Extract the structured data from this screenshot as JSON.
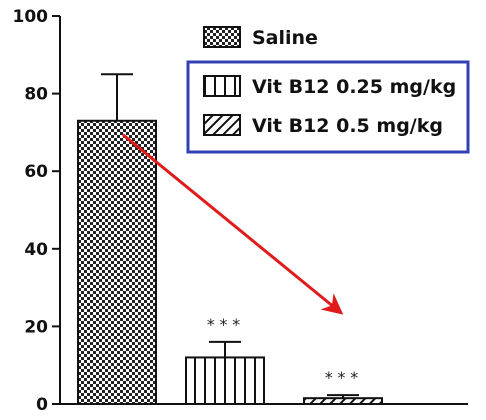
{
  "chart_data": {
    "type": "bar",
    "categories": [
      "Saline",
      "Vit B12 0.25 mg/kg",
      "Vit B12 0.5 mg/kg"
    ],
    "values": [
      73,
      12,
      1.5
    ],
    "errors": [
      12,
      4,
      0.8
    ],
    "significance": [
      "",
      "***",
      "***"
    ],
    "ylim": [
      0,
      100
    ],
    "yticks": [
      "0",
      "20",
      "40",
      "60",
      "80",
      "100"
    ],
    "legend": {
      "position": "top-right",
      "entries": [
        {
          "label": "Saline",
          "pattern": "checker"
        },
        {
          "label": "Vit B12 0.25 mg/kg",
          "pattern": "vertical-lines"
        },
        {
          "label": "Vit B12 0.5 mg/kg",
          "pattern": "diagonal-lines"
        }
      ],
      "highlight_box_color": "#3340b5"
    },
    "annotation_arrow": {
      "from_category": "Saline",
      "to_category": "Vit B12 0.5 mg/kg",
      "color": "#e01b1b"
    },
    "title": "",
    "xlabel": "",
    "ylabel": ""
  }
}
